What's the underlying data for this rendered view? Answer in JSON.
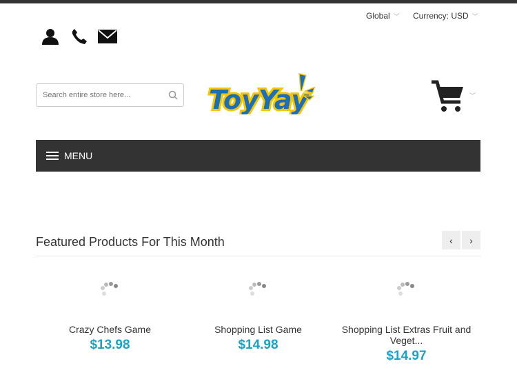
{
  "header": {
    "region": "Global",
    "currency": "Currency: USD",
    "search_placeholder": "Search entire store here...",
    "logo_text": "ToyYay",
    "menu_label": "MENU"
  },
  "icons": [
    "user-icon",
    "phone-icon",
    "mail-icon",
    "search-icon",
    "cart-icon"
  ],
  "featured": {
    "title": "Featured Products For This Month",
    "prev": "‹",
    "next": "›",
    "products": [
      {
        "name": "Crazy Chefs Game",
        "price": "$13.98"
      },
      {
        "name": "Shopping List Game",
        "price": "$14.98"
      },
      {
        "name": "Shopping List Extras Fruit and Veget...",
        "price": "$14.97"
      }
    ]
  },
  "colors": {
    "accent": "#19a3c6",
    "menu_bg": "#333333",
    "logo_blue": "#1a6fb8",
    "logo_yellow": "#f7c600"
  }
}
